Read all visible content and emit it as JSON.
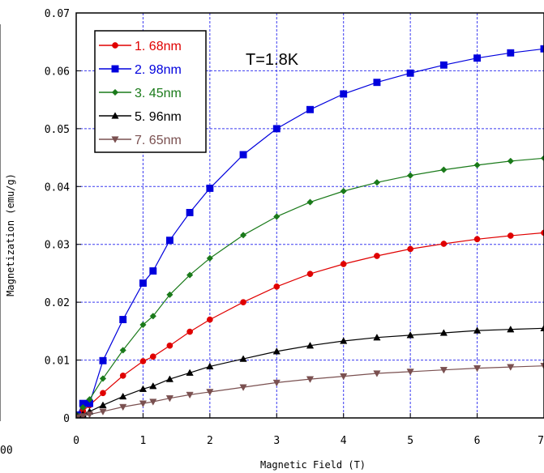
{
  "chart_data": {
    "type": "scatter",
    "title": "",
    "annotation": "T=1.8K",
    "xlabel": "Magnetic Field (T)",
    "ylabel": "Magnetization (emu/g)",
    "xlim": [
      0,
      7
    ],
    "ylim": [
      0,
      0.07
    ],
    "x_ticks": [
      "0",
      "1",
      "2",
      "3",
      "4",
      "5",
      "6",
      "7"
    ],
    "y_ticks": [
      "0",
      "0.01",
      "0.02",
      "0.03",
      "0.04",
      "0.05",
      "0.06",
      "0.07"
    ],
    "grid": true,
    "legend_position": "top-left",
    "partial_left_tick_label": "00",
    "series": [
      {
        "name": "1. 68nm",
        "color": "#e00000",
        "marker": "circle",
        "points": [
          [
            0.02,
            0.0003
          ],
          [
            0.1,
            0.0012
          ],
          [
            0.2,
            0.0022
          ],
          [
            0.4,
            0.0043
          ],
          [
            0.7,
            0.0073
          ],
          [
            1.0,
            0.0098
          ],
          [
            1.15,
            0.0106
          ],
          [
            1.4,
            0.0125
          ],
          [
            1.7,
            0.0149
          ],
          [
            2.0,
            0.017
          ],
          [
            2.5,
            0.02
          ],
          [
            3.0,
            0.0227
          ],
          [
            3.5,
            0.0249
          ],
          [
            4.0,
            0.0266
          ],
          [
            4.5,
            0.028
          ],
          [
            5.0,
            0.0292
          ],
          [
            5.5,
            0.0301
          ],
          [
            6.0,
            0.0309
          ],
          [
            6.5,
            0.0315
          ],
          [
            7.0,
            0.032
          ]
        ]
      },
      {
        "name": "2. 98nm",
        "color": "#0000dd",
        "marker": "square",
        "points": [
          [
            0.02,
            0.0005
          ],
          [
            0.1,
            0.0025
          ],
          [
            0.2,
            0.0025
          ],
          [
            0.4,
            0.0099
          ],
          [
            0.7,
            0.017
          ],
          [
            1.0,
            0.0233
          ],
          [
            1.15,
            0.0254
          ],
          [
            1.4,
            0.0307
          ],
          [
            1.7,
            0.0355
          ],
          [
            2.0,
            0.0397
          ],
          [
            2.5,
            0.0455
          ],
          [
            3.0,
            0.05
          ],
          [
            3.5,
            0.0533
          ],
          [
            4.0,
            0.056
          ],
          [
            4.5,
            0.058
          ],
          [
            5.0,
            0.0596
          ],
          [
            5.5,
            0.061
          ],
          [
            6.0,
            0.0622
          ],
          [
            6.5,
            0.0631
          ],
          [
            7.0,
            0.0638
          ]
        ]
      },
      {
        "name": "3. 45nm",
        "color": "#1a7a1a",
        "marker": "diamond",
        "points": [
          [
            0.02,
            0.0004
          ],
          [
            0.1,
            0.0018
          ],
          [
            0.2,
            0.0032
          ],
          [
            0.4,
            0.0068
          ],
          [
            0.7,
            0.0117
          ],
          [
            1.0,
            0.0161
          ],
          [
            1.15,
            0.0176
          ],
          [
            1.4,
            0.0213
          ],
          [
            1.7,
            0.0247
          ],
          [
            2.0,
            0.0276
          ],
          [
            2.5,
            0.0316
          ],
          [
            3.0,
            0.0348
          ],
          [
            3.5,
            0.0373
          ],
          [
            4.0,
            0.0392
          ],
          [
            4.5,
            0.0407
          ],
          [
            5.0,
            0.0419
          ],
          [
            5.5,
            0.0429
          ],
          [
            6.0,
            0.0437
          ],
          [
            6.5,
            0.0444
          ],
          [
            7.0,
            0.0449
          ]
        ]
      },
      {
        "name": "5. 96nm",
        "color": "#000000",
        "marker": "triangle-up",
        "points": [
          [
            0.02,
            0.0002
          ],
          [
            0.1,
            0.0006
          ],
          [
            0.2,
            0.0011
          ],
          [
            0.4,
            0.0022
          ],
          [
            0.7,
            0.0037
          ],
          [
            1.0,
            0.005
          ],
          [
            1.15,
            0.0055
          ],
          [
            1.4,
            0.0067
          ],
          [
            1.7,
            0.0078
          ],
          [
            2.0,
            0.0089
          ],
          [
            2.5,
            0.0102
          ],
          [
            3.0,
            0.0115
          ],
          [
            3.5,
            0.0125
          ],
          [
            4.0,
            0.0133
          ],
          [
            4.5,
            0.0139
          ],
          [
            5.0,
            0.0143
          ],
          [
            5.5,
            0.0147
          ],
          [
            6.0,
            0.0151
          ],
          [
            6.5,
            0.0153
          ],
          [
            7.0,
            0.0155
          ]
        ]
      },
      {
        "name": "7. 65nm",
        "color": "#7a5050",
        "marker": "triangle-down",
        "points": [
          [
            0.02,
            0.0001
          ],
          [
            0.1,
            0.0003
          ],
          [
            0.2,
            0.0006
          ],
          [
            0.4,
            0.0011
          ],
          [
            0.7,
            0.0019
          ],
          [
            1.0,
            0.0025
          ],
          [
            1.15,
            0.0028
          ],
          [
            1.4,
            0.0034
          ],
          [
            1.7,
            0.004
          ],
          [
            2.0,
            0.0045
          ],
          [
            2.5,
            0.0053
          ],
          [
            3.0,
            0.0061
          ],
          [
            3.5,
            0.0067
          ],
          [
            4.0,
            0.0072
          ],
          [
            4.5,
            0.0077
          ],
          [
            5.0,
            0.008
          ],
          [
            5.5,
            0.0083
          ],
          [
            6.0,
            0.0086
          ],
          [
            6.5,
            0.0088
          ],
          [
            7.0,
            0.009
          ]
        ]
      }
    ]
  }
}
